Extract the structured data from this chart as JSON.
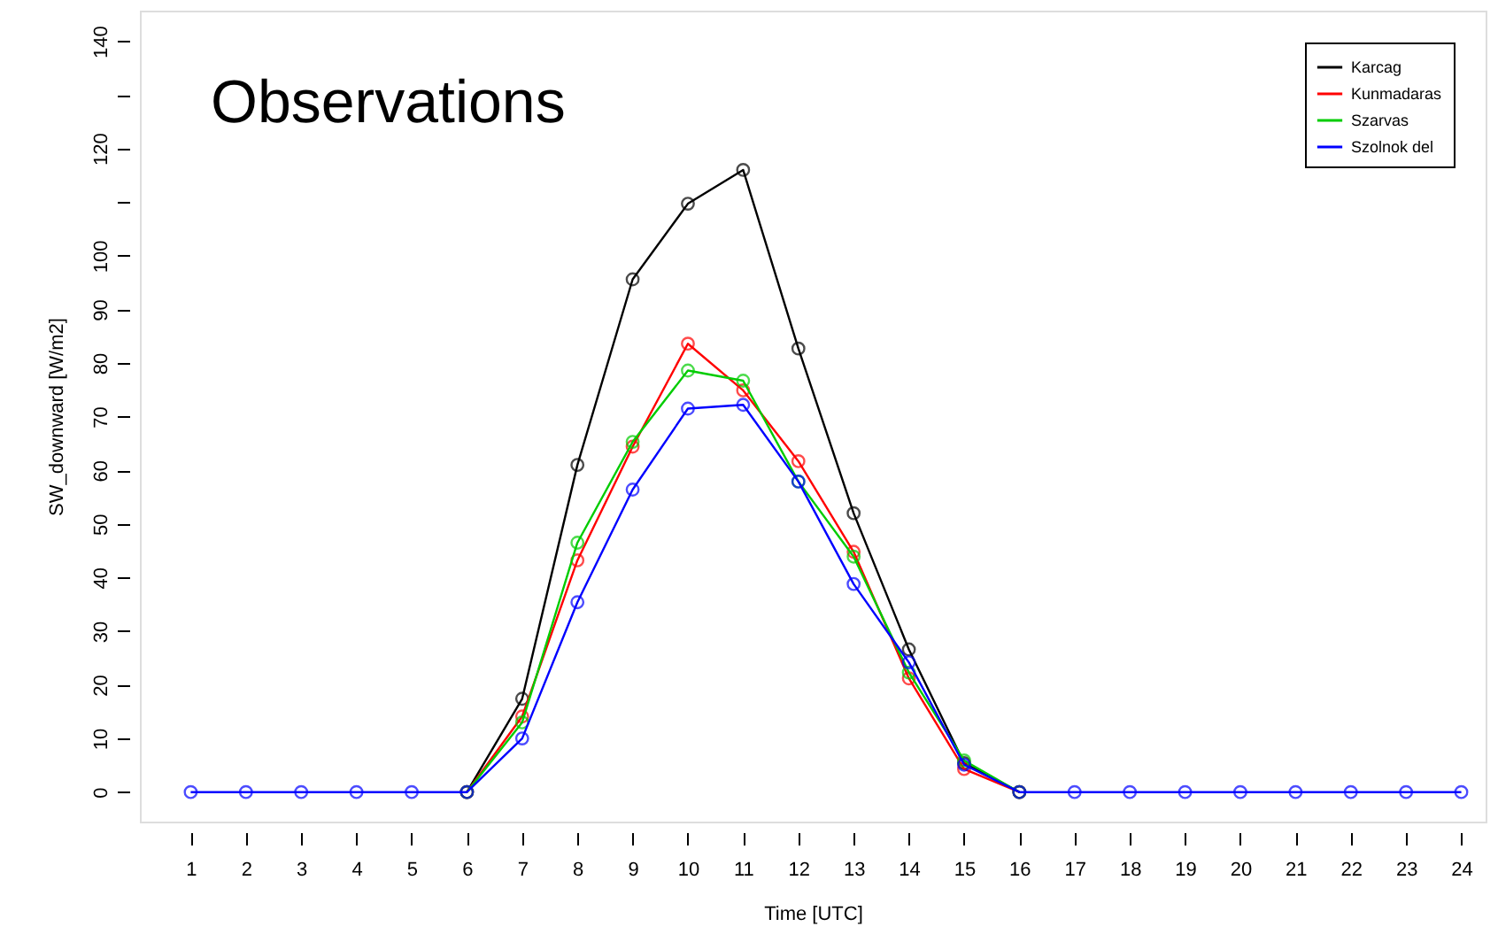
{
  "chart_data": {
    "type": "line",
    "title": "Observations",
    "xlabel": "Time [UTC]",
    "ylabel": "SW_downward [W/m2]",
    "x": [
      1,
      2,
      3,
      4,
      5,
      6,
      7,
      8,
      9,
      10,
      11,
      12,
      13,
      14,
      15,
      16,
      17,
      18,
      19,
      20,
      21,
      22,
      23,
      24
    ],
    "series": [
      {
        "name": "Karcag",
        "color": "#000000",
        "values": [
          null,
          null,
          null,
          null,
          null,
          0,
          17.4,
          61,
          95.6,
          109.7,
          116,
          82.7,
          52,
          26.6,
          5.4,
          0,
          null,
          null,
          null,
          null,
          null,
          null,
          null,
          null
        ]
      },
      {
        "name": "Kunmadaras",
        "color": "#ff0000",
        "values": [
          null,
          null,
          null,
          null,
          null,
          0,
          14.1,
          43.2,
          64.4,
          83.6,
          74.9,
          61.7,
          44.8,
          21.2,
          4.3,
          0,
          null,
          null,
          null,
          null,
          null,
          null,
          null,
          null
        ]
      },
      {
        "name": "Szarvas",
        "color": "#00cc00",
        "values": [
          null,
          null,
          null,
          null,
          null,
          0,
          13,
          46.5,
          65.3,
          78.6,
          76.7,
          57.9,
          43.9,
          22.3,
          5.9,
          0,
          null,
          null,
          null,
          null,
          null,
          null,
          null,
          null
        ]
      },
      {
        "name": "Szolnok del",
        "color": "#0000ff",
        "values": [
          0,
          0,
          0,
          0,
          0,
          0,
          10,
          35.4,
          56.4,
          71.5,
          72.2,
          57.9,
          38.8,
          24.2,
          5.1,
          0,
          0,
          0,
          0,
          0,
          0,
          0,
          0,
          0
        ]
      }
    ],
    "xlim": [
      0.08,
      24.44
    ],
    "xticks": [
      1,
      2,
      3,
      4,
      5,
      6,
      7,
      8,
      9,
      10,
      11,
      12,
      13,
      14,
      15,
      16,
      17,
      18,
      19,
      20,
      21,
      22,
      23,
      24
    ],
    "ylim": [
      -5.5,
      145.7
    ],
    "yticks": [
      0,
      10,
      20,
      30,
      40,
      50,
      60,
      70,
      80,
      90,
      100,
      {
        "value": 110,
        "label": null
      },
      120,
      {
        "value": 130,
        "label": null
      },
      140
    ],
    "grid": false,
    "legend": "top right",
    "marker": "circle",
    "line_style": "solid"
  }
}
